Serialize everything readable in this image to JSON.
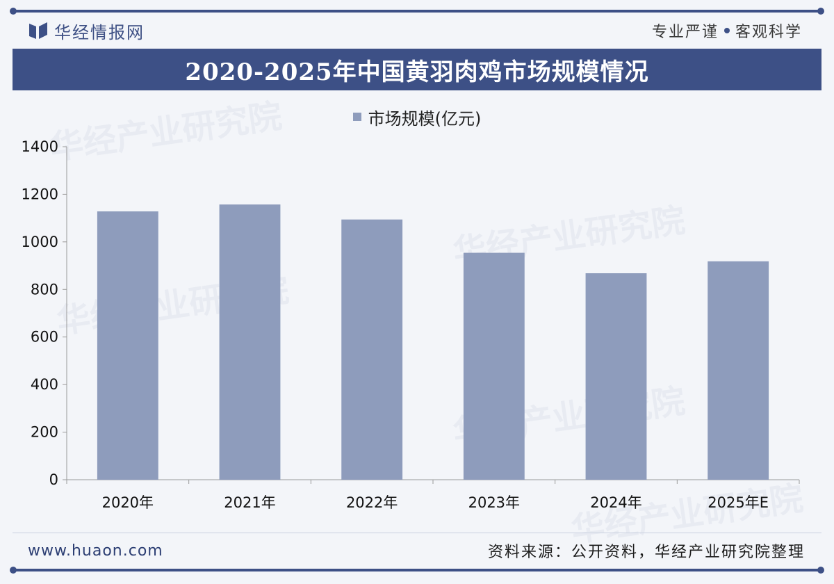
{
  "header": {
    "brand_name": "华经情报网",
    "slogan_left": "专业严谨",
    "slogan_right": "客观科学"
  },
  "footer": {
    "website": "www.huaon.com",
    "source": "资料来源：公开资料，华经产业研究院整理"
  },
  "colors": {
    "accent": "#3d5086",
    "bar": "#8e9cbc"
  },
  "chart_data": {
    "type": "bar",
    "title": "2020-2025年中国黄羽肉鸡市场规模情况",
    "categories": [
      "2020年",
      "2021年",
      "2022年",
      "2023年",
      "2024年",
      "2025年E"
    ],
    "series": [
      {
        "name": "市场规模(亿元)",
        "values": [
          1128,
          1157,
          1094,
          954,
          868,
          918
        ]
      }
    ],
    "ylim": [
      0,
      1400
    ],
    "yticks": [
      0,
      200,
      400,
      600,
      800,
      1000,
      1200,
      1400
    ],
    "legend_position": "top-center",
    "grid": false
  }
}
